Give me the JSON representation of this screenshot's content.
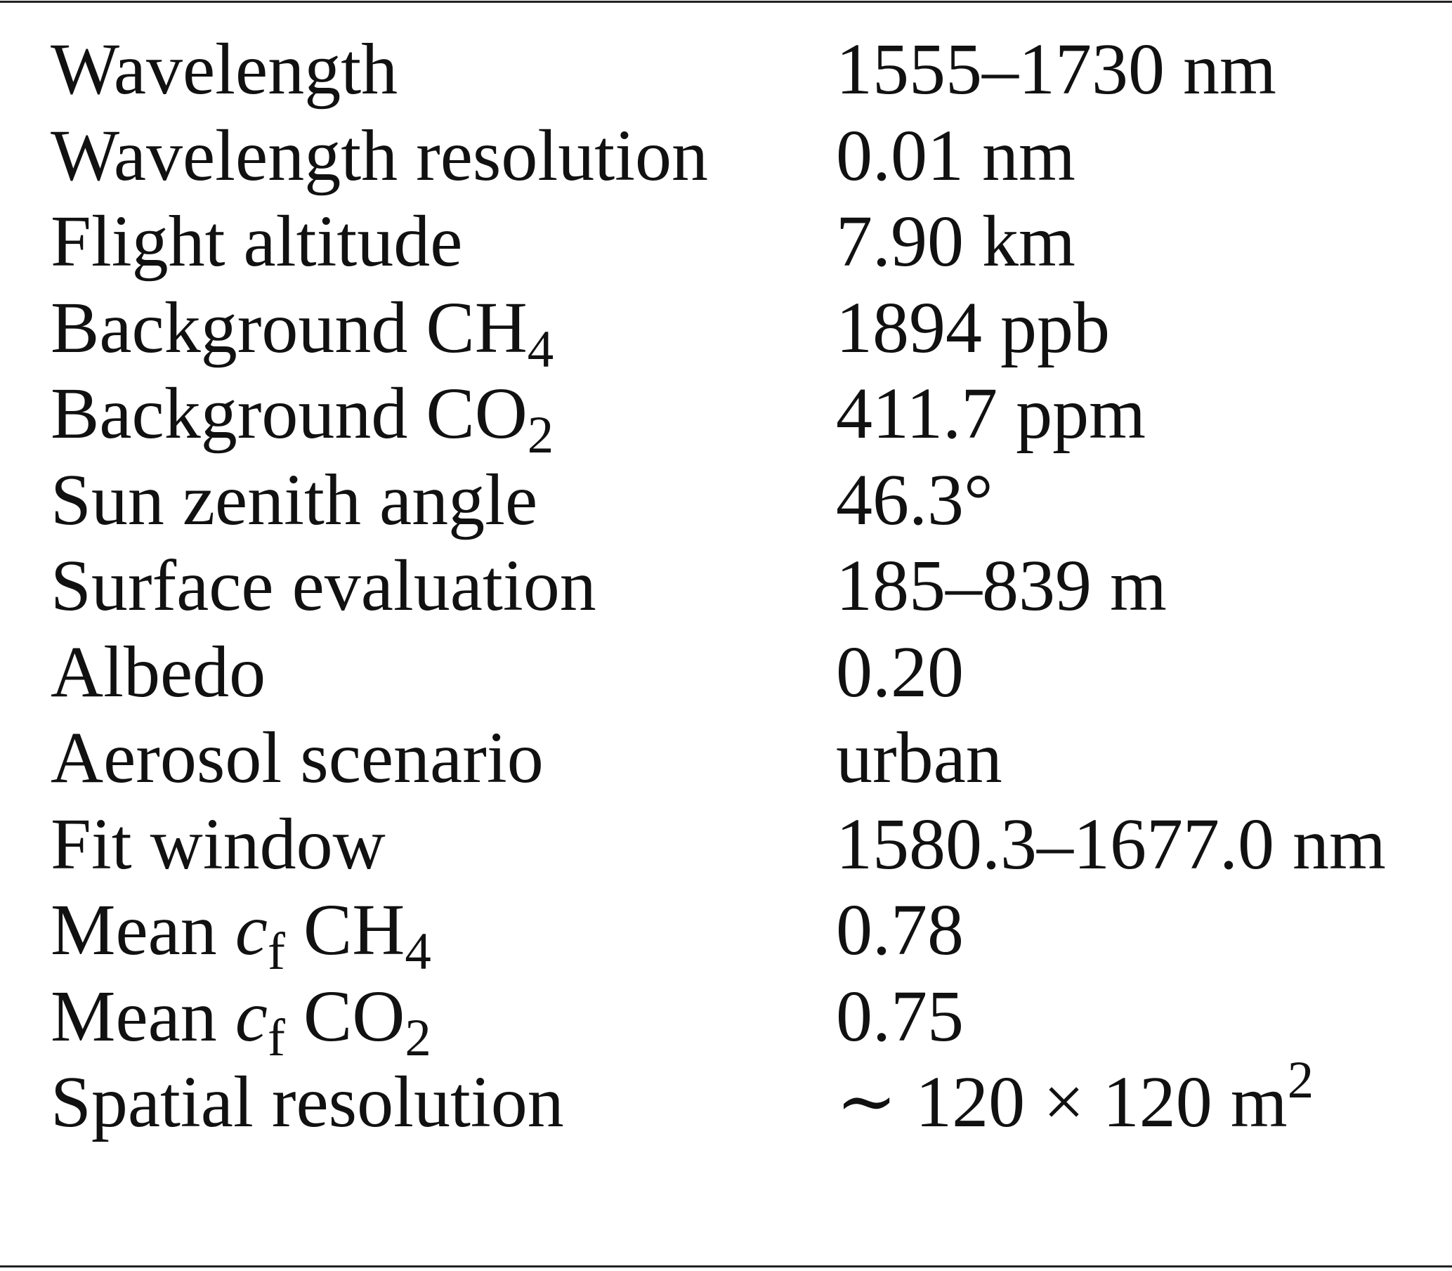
{
  "table": {
    "rows": [
      {
        "parameter": [
          "Wavelength"
        ],
        "value": [
          "1555–1730 nm"
        ]
      },
      {
        "parameter": [
          "Wavelength resolution"
        ],
        "value": [
          "0.01 nm"
        ]
      },
      {
        "parameter": [
          "Flight altitude"
        ],
        "value": [
          "7.90 km"
        ]
      },
      {
        "parameter": [
          "Background CH",
          {
            "sub": "4"
          }
        ],
        "value": [
          "1894 ppb"
        ]
      },
      {
        "parameter": [
          "Background CO",
          {
            "sub": "2"
          }
        ],
        "value": [
          "411.7 ppm"
        ]
      },
      {
        "parameter": [
          "Sun zenith angle"
        ],
        "value": [
          "46.3°"
        ]
      },
      {
        "parameter": [
          "Surface evaluation"
        ],
        "value": [
          "185–839 m"
        ]
      },
      {
        "parameter": [
          "Albedo"
        ],
        "value": [
          "0.20"
        ]
      },
      {
        "parameter": [
          "Aerosol scenario"
        ],
        "value": [
          "urban"
        ]
      },
      {
        "parameter": [
          "Fit window"
        ],
        "value": [
          "1580.3–1677.0 nm"
        ]
      },
      {
        "parameter": [
          "Mean ",
          {
            "i": "c"
          },
          {
            "sub": "f"
          },
          " CH",
          {
            "sub": "4"
          }
        ],
        "value": [
          "0.78"
        ]
      },
      {
        "parameter": [
          "Mean ",
          {
            "i": "c"
          },
          {
            "sub": "f"
          },
          " CO",
          {
            "sub": "2"
          }
        ],
        "value": [
          "0.75"
        ]
      },
      {
        "parameter": [
          "Spatial resolution"
        ],
        "value": [
          "∼ 120 × 120 m",
          {
            "sup": "2"
          }
        ]
      }
    ]
  }
}
